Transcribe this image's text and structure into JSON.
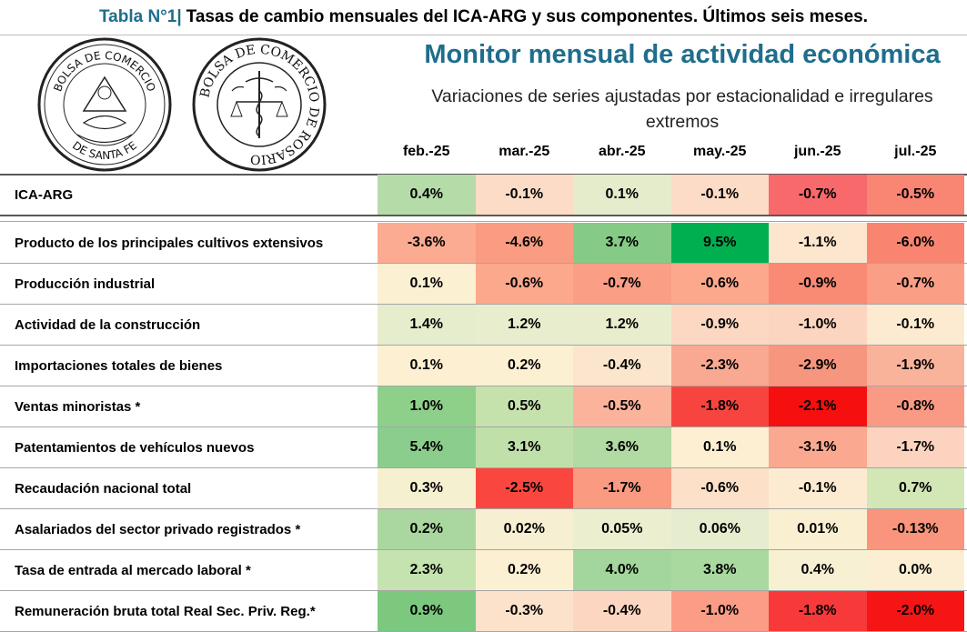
{
  "header": {
    "prefix": "Tabla N°1|",
    "title": "Tasas de cambio mensuales del ICA-ARG y sus componentes. Últimos seis meses."
  },
  "logos": {
    "left": {
      "top_text": "BOLSA DE COMERCIO",
      "bottom_text": "DE SANTA FE"
    },
    "right": {
      "ring_text": "BOLSA DE COMERCIO DE ROSARIO"
    }
  },
  "heading": "Monitor mensual de actividad económica",
  "subheading": "Variaciones de series ajustadas por estacionalidad e irregulares extremos",
  "months": [
    "feb.-25",
    "mar.-25",
    "abr.-25",
    "may.-25",
    "jun.-25",
    "jul.-25"
  ],
  "rows": [
    {
      "label": "ICA-ARG",
      "values": [
        "0.4%",
        "-0.1%",
        "0.1%",
        "-0.1%",
        "-0.7%",
        "-0.5%"
      ],
      "colors": [
        "#b5dca8",
        "#fcdcc6",
        "#e4eccc",
        "#fcdcc6",
        "#f7696b",
        "#f98573"
      ]
    },
    {
      "label": "Producto de los principales cultivos extensivos",
      "values": [
        "-3.6%",
        "-4.6%",
        "3.7%",
        "9.5%",
        "-1.1%",
        "-6.0%"
      ],
      "colors": [
        "#fbab92",
        "#fa9c82",
        "#85cb86",
        "#00b050",
        "#fde6ce",
        "#f98570"
      ]
    },
    {
      "label": "Producción industrial",
      "values": [
        "0.1%",
        "-0.6%",
        "-0.7%",
        "-0.6%",
        "-0.9%",
        "-0.7%"
      ],
      "colors": [
        "#fbf0d2",
        "#fca88d",
        "#fb9e86",
        "#fca88d",
        "#f98a74",
        "#fb9e86"
      ]
    },
    {
      "label": "Actividad de la construcción",
      "values": [
        "1.4%",
        "1.2%",
        "1.2%",
        "-0.9%",
        "-1.0%",
        "-0.1%"
      ],
      "colors": [
        "#e5edcc",
        "#e8eecd",
        "#e8eecd",
        "#fcd8c3",
        "#fcd5c0",
        "#fcebd0"
      ]
    },
    {
      "label": "Importaciones totales de bienes",
      "values": [
        "0.1%",
        "0.2%",
        "-0.4%",
        "-2.3%",
        "-2.9%",
        "-1.9%"
      ],
      "colors": [
        "#fcefd2",
        "#fbf0d2",
        "#fce5cd",
        "#f9a892",
        "#f7967e",
        "#fab39b"
      ]
    },
    {
      "label": "Ventas minoristas *",
      "values": [
        "1.0%",
        "0.5%",
        "-0.5%",
        "-1.8%",
        "-2.1%",
        "-0.8%"
      ],
      "colors": [
        "#8ecf8a",
        "#c5e1ac",
        "#fbb39c",
        "#f8443f",
        "#f60f0f",
        "#fa9a84"
      ]
    },
    {
      "label": "Patentamientos de vehículos nuevos",
      "values": [
        "5.4%",
        "3.1%",
        "3.6%",
        "0.1%",
        "-3.1%",
        "-1.7%"
      ],
      "colors": [
        "#8bcd8c",
        "#c0e0aa",
        "#b2daa3",
        "#fcefd2",
        "#fba890",
        "#fcd3be"
      ]
    },
    {
      "label": "Recaudación nacional total",
      "values": [
        "0.3%",
        "-2.5%",
        "-1.7%",
        "-0.6%",
        "-0.1%",
        "0.7%"
      ],
      "colors": [
        "#f5f0d0",
        "#f9473f",
        "#f99a81",
        "#fce0c8",
        "#fcebd0",
        "#d3e6b5"
      ]
    },
    {
      "label": "Asalariados del sector privado registrados *",
      "values": [
        "0.2%",
        "0.02%",
        "0.05%",
        "0.06%",
        "0.01%",
        "-0.13%"
      ],
      "colors": [
        "#a9d79f",
        "#f6efd1",
        "#ebeecf",
        "#e6ecce",
        "#fbefd2",
        "#f8957c"
      ]
    },
    {
      "label": "Tasa de entrada al mercado laboral *",
      "values": [
        "2.3%",
        "0.2%",
        "4.0%",
        "3.8%",
        "0.4%",
        "0.0%"
      ],
      "colors": [
        "#c5e3ae",
        "#fcf0d2",
        "#a3d69c",
        "#a9d99f",
        "#f8f0d2",
        "#fceed2"
      ]
    },
    {
      "label": "Remuneración bruta total Real Sec. Priv. Reg.*",
      "values": [
        "0.9%",
        "-0.3%",
        "-0.4%",
        "-1.0%",
        "-1.8%",
        "-2.0%"
      ],
      "colors": [
        "#7cc87f",
        "#fce2cb",
        "#fcd6c1",
        "#fb9c86",
        "#f8393a",
        "#f61515"
      ]
    }
  ]
}
